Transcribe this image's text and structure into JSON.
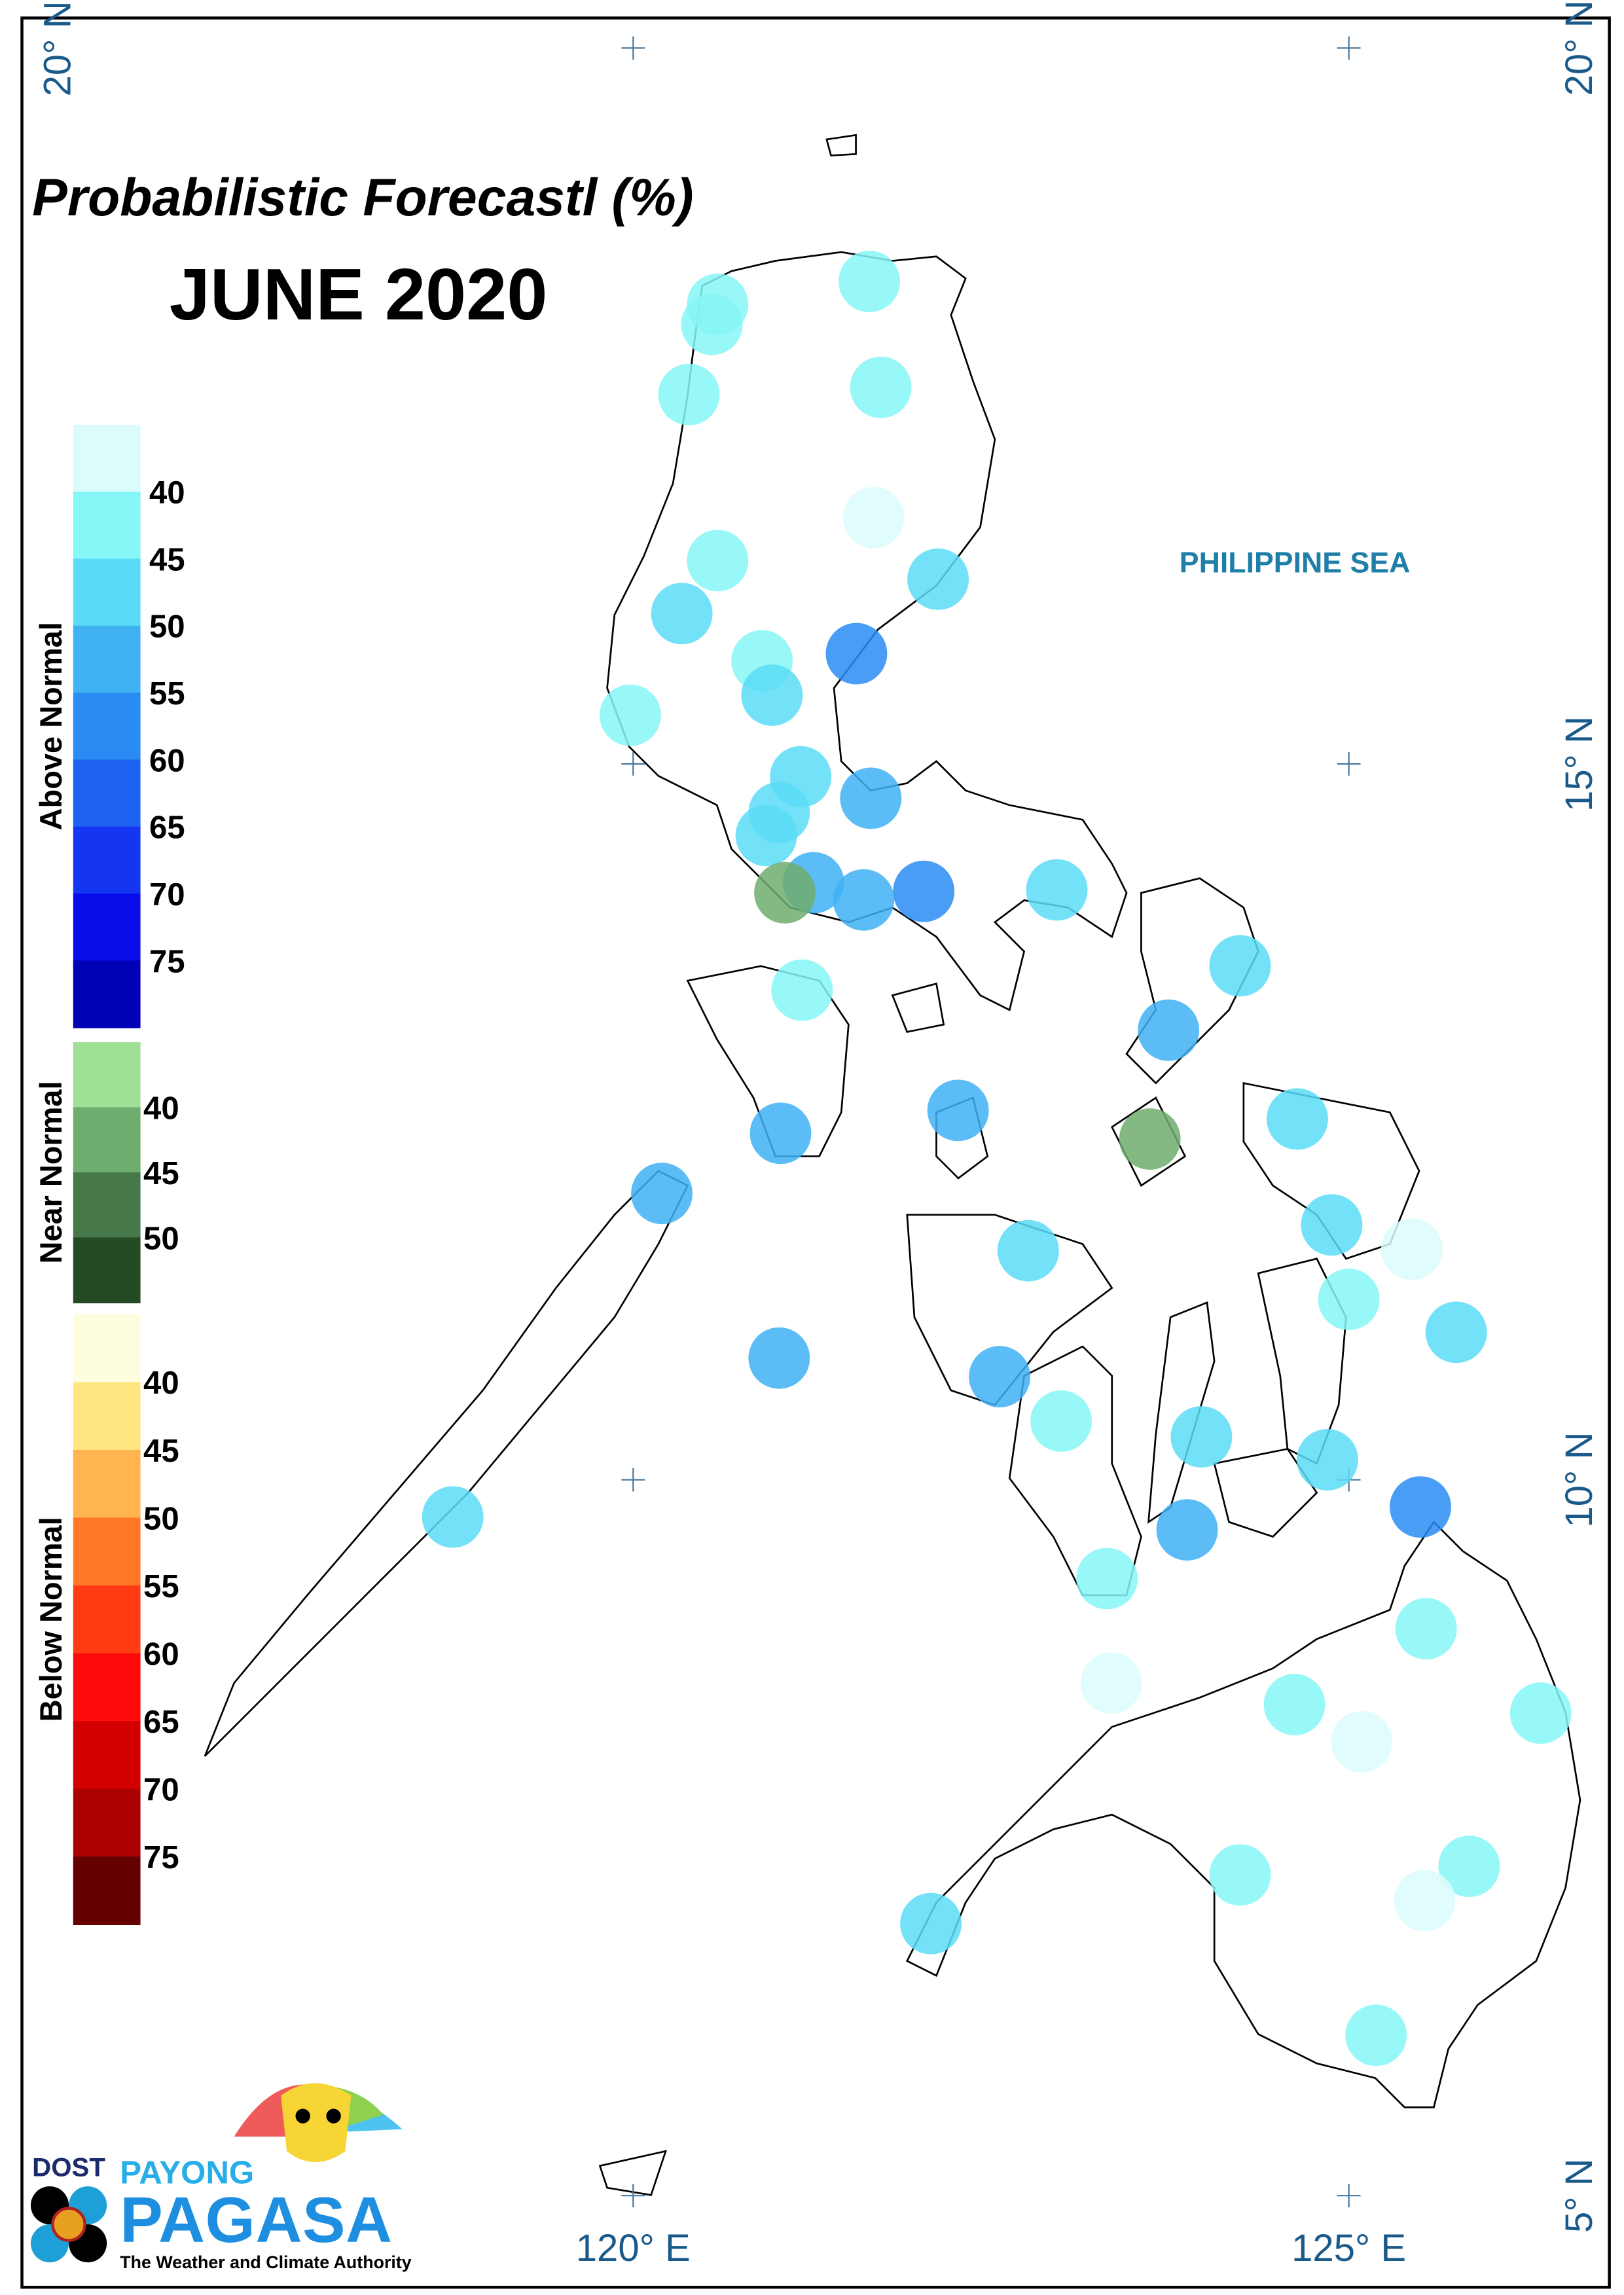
{
  "title": "Probabilistic Forecastl (%)",
  "subtitle": "JUNE 2020",
  "sea_label": "PHILIPPINE SEA",
  "axes": {
    "xlim": [
      115.73,
      126.82
    ],
    "ylim": [
      4.36,
      20.21
    ],
    "xticks": [
      {
        "value": 120,
        "label": "120° E"
      },
      {
        "value": 125,
        "label": "125° E"
      }
    ],
    "yticks": [
      {
        "value": 5,
        "label": "5° N"
      },
      {
        "value": 10,
        "label": "10° N"
      },
      {
        "value": 15,
        "label": "15° N"
      },
      {
        "value": 20,
        "label": "20° N"
      }
    ]
  },
  "legend": [
    {
      "name": "Above Normal",
      "colors": [
        "#dcfcfc",
        "#86f6f6",
        "#5adcf6",
        "#40b2f4",
        "#2a8cf2",
        "#1e62f2",
        "#1436f0",
        "#080ce8",
        "#0000b4"
      ],
      "ticks": [
        40,
        45,
        50,
        55,
        60,
        65,
        70,
        75
      ]
    },
    {
      "name": "Near Normal",
      "colors": [
        "#a0e096",
        "#6ead6e",
        "#46784a",
        "#234a23"
      ],
      "ticks": [
        40,
        45,
        50
      ]
    },
    {
      "name": "Below Normal",
      "colors": [
        "#fffde0",
        "#ffe682",
        "#ffb450",
        "#ff7828",
        "#ff3c14",
        "#ff0a0a",
        "#d20000",
        "#aa0000",
        "#640000"
      ],
      "ticks": [
        40,
        45,
        50,
        55,
        60,
        65,
        70,
        75
      ]
    }
  ],
  "stations": [
    {
      "lon": 121.65,
      "lat": 18.37,
      "outlook": 0,
      "value": 43
    },
    {
      "lon": 120.59,
      "lat": 18.21,
      "outlook": 0,
      "value": 43
    },
    {
      "lon": 120.55,
      "lat": 18.07,
      "outlook": 0,
      "value": 43
    },
    {
      "lon": 120.39,
      "lat": 17.58,
      "outlook": 0,
      "value": 43
    },
    {
      "lon": 121.73,
      "lat": 17.63,
      "outlook": 0,
      "value": 43
    },
    {
      "lon": 121.68,
      "lat": 16.72,
      "outlook": 0,
      "value": 38
    },
    {
      "lon": 120.59,
      "lat": 16.42,
      "outlook": 0,
      "value": 43
    },
    {
      "lon": 122.13,
      "lat": 16.29,
      "outlook": 0,
      "value": 48
    },
    {
      "lon": 120.34,
      "lat": 16.05,
      "outlook": 0,
      "value": 48
    },
    {
      "lon": 120.9,
      "lat": 15.72,
      "outlook": 0,
      "value": 43
    },
    {
      "lon": 121.56,
      "lat": 15.77,
      "outlook": 0,
      "value": 58
    },
    {
      "lon": 120.97,
      "lat": 15.48,
      "outlook": 0,
      "value": 48
    },
    {
      "lon": 119.98,
      "lat": 15.34,
      "outlook": 0,
      "value": 43
    },
    {
      "lon": 121.17,
      "lat": 14.91,
      "outlook": 0,
      "value": 48
    },
    {
      "lon": 121.66,
      "lat": 14.76,
      "outlook": 0,
      "value": 53
    },
    {
      "lon": 121.02,
      "lat": 14.66,
      "outlook": 0,
      "value": 48
    },
    {
      "lon": 120.93,
      "lat": 14.5,
      "outlook": 0,
      "value": 48
    },
    {
      "lon": 121.26,
      "lat": 14.17,
      "outlook": 0,
      "value": 53
    },
    {
      "lon": 121.06,
      "lat": 14.1,
      "outlook": 1,
      "value": 42
    },
    {
      "lon": 121.61,
      "lat": 14.05,
      "outlook": 0,
      "value": 53
    },
    {
      "lon": 122.03,
      "lat": 14.11,
      "outlook": 0,
      "value": 58
    },
    {
      "lon": 122.96,
      "lat": 14.12,
      "outlook": 0,
      "value": 48
    },
    {
      "lon": 124.24,
      "lat": 13.59,
      "outlook": 0,
      "value": 48
    },
    {
      "lon": 123.74,
      "lat": 13.14,
      "outlook": 0,
      "value": 53
    },
    {
      "lon": 121.18,
      "lat": 13.42,
      "outlook": 0,
      "value": 43
    },
    {
      "lon": 122.27,
      "lat": 12.58,
      "outlook": 0,
      "value": 53
    },
    {
      "lon": 121.03,
      "lat": 12.42,
      "outlook": 0,
      "value": 53
    },
    {
      "lon": 123.61,
      "lat": 12.38,
      "outlook": 1,
      "value": 42
    },
    {
      "lon": 124.64,
      "lat": 12.52,
      "outlook": 0,
      "value": 48
    },
    {
      "lon": 120.2,
      "lat": 12.0,
      "outlook": 0,
      "value": 53
    },
    {
      "lon": 124.88,
      "lat": 11.78,
      "outlook": 0,
      "value": 48
    },
    {
      "lon": 125.44,
      "lat": 11.61,
      "outlook": 0,
      "value": 38
    },
    {
      "lon": 122.76,
      "lat": 11.6,
      "outlook": 0,
      "value": 48
    },
    {
      "lon": 125.0,
      "lat": 11.26,
      "outlook": 0,
      "value": 43
    },
    {
      "lon": 125.75,
      "lat": 11.03,
      "outlook": 0,
      "value": 48
    },
    {
      "lon": 121.02,
      "lat": 10.85,
      "outlook": 0,
      "value": 53
    },
    {
      "lon": 122.56,
      "lat": 10.72,
      "outlook": 0,
      "value": 53
    },
    {
      "lon": 122.99,
      "lat": 10.41,
      "outlook": 0,
      "value": 43
    },
    {
      "lon": 123.97,
      "lat": 10.3,
      "outlook": 0,
      "value": 48
    },
    {
      "lon": 124.85,
      "lat": 10.14,
      "outlook": 0,
      "value": 48
    },
    {
      "lon": 125.5,
      "lat": 9.81,
      "outlook": 0,
      "value": 58
    },
    {
      "lon": 118.74,
      "lat": 9.74,
      "outlook": 0,
      "value": 48
    },
    {
      "lon": 123.87,
      "lat": 9.65,
      "outlook": 0,
      "value": 53
    },
    {
      "lon": 123.31,
      "lat": 9.31,
      "outlook": 0,
      "value": 43
    },
    {
      "lon": 125.54,
      "lat": 8.96,
      "outlook": 0,
      "value": 43
    },
    {
      "lon": 123.34,
      "lat": 8.58,
      "outlook": 0,
      "value": 38
    },
    {
      "lon": 124.62,
      "lat": 8.43,
      "outlook": 0,
      "value": 43
    },
    {
      "lon": 126.34,
      "lat": 8.37,
      "outlook": 0,
      "value": 43
    },
    {
      "lon": 125.09,
      "lat": 8.17,
      "outlook": 0,
      "value": 38
    },
    {
      "lon": 124.24,
      "lat": 7.24,
      "outlook": 0,
      "value": 43
    },
    {
      "lon": 125.84,
      "lat": 7.3,
      "outlook": 0,
      "value": 43
    },
    {
      "lon": 125.53,
      "lat": 7.06,
      "outlook": 0,
      "value": 38
    },
    {
      "lon": 122.08,
      "lat": 6.9,
      "outlook": 0,
      "value": 48
    },
    {
      "lon": 125.19,
      "lat": 6.12,
      "outlook": 0,
      "value": 43
    }
  ],
  "logo": {
    "agency": "DOST",
    "brand_top": "PAYONG",
    "brand": "PAGASA",
    "tagline": "The Weather and Climate Authority"
  }
}
